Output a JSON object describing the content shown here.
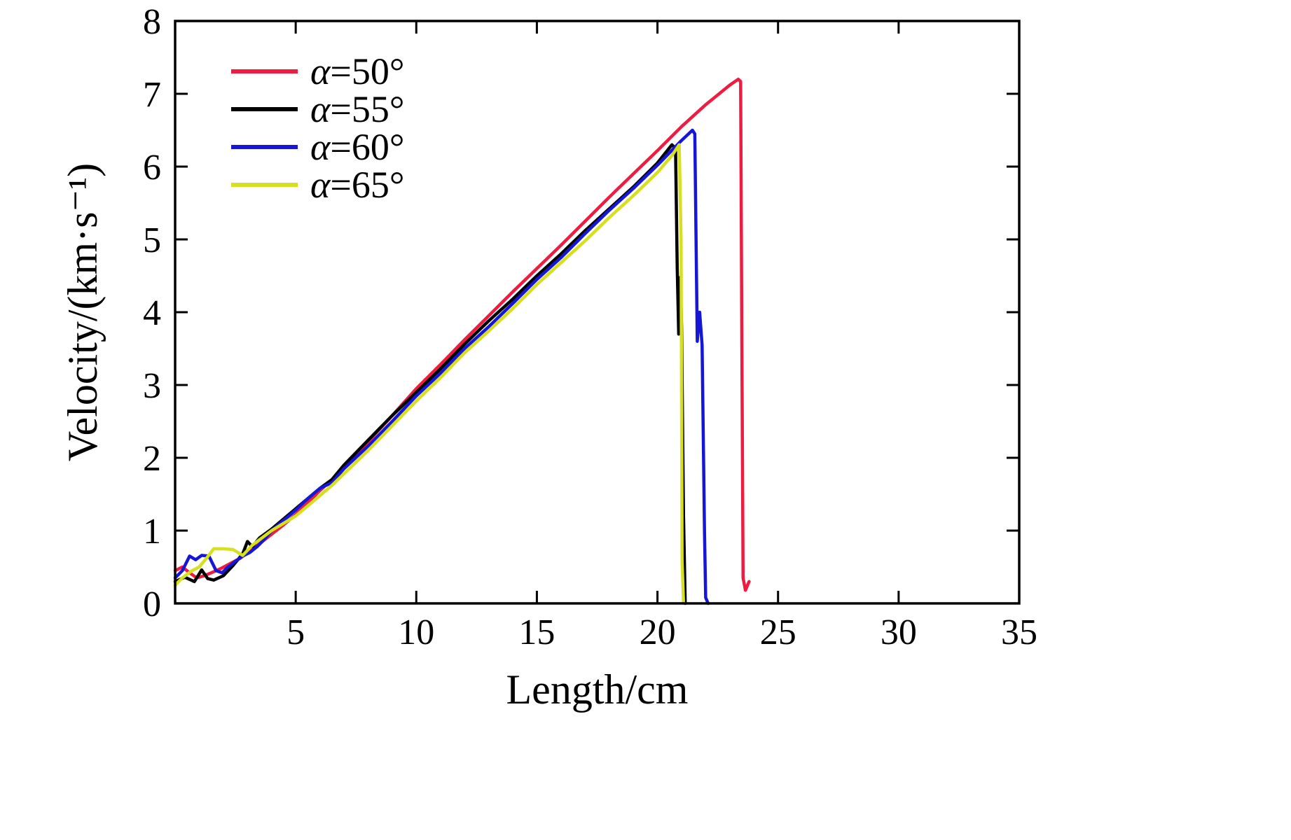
{
  "chart_data": {
    "type": "line",
    "title": "",
    "xlabel": "Length/cm",
    "ylabel": "Velocity/(km·s⁻¹)",
    "xlim": [
      0,
      35
    ],
    "ylim": [
      0,
      8
    ],
    "xticks": [
      5,
      10,
      15,
      20,
      25,
      30,
      35
    ],
    "yticks": [
      0,
      1,
      2,
      3,
      4,
      5,
      6,
      7,
      8
    ],
    "grid": false,
    "legend_position": "top-left",
    "frame_color": "#000000",
    "series": [
      {
        "name": "α=50°",
        "color": "#ed1c40",
        "x": [
          0,
          0.3,
          0.6,
          0.9,
          1.2,
          1.5,
          1.9,
          2.3,
          2.7,
          3.1,
          3.5,
          4,
          4.5,
          5,
          5.5,
          6,
          6.5,
          7,
          7.5,
          8,
          9,
          10,
          11,
          12,
          13,
          14,
          15,
          16,
          17,
          18,
          19,
          20,
          21,
          22,
          23,
          23.35,
          23.45,
          23.5,
          23.55,
          23.65,
          23.8
        ],
        "y": [
          0.45,
          0.5,
          0.42,
          0.35,
          0.38,
          0.42,
          0.48,
          0.55,
          0.62,
          0.72,
          0.82,
          0.95,
          1.08,
          1.22,
          1.38,
          1.55,
          1.7,
          1.88,
          2.05,
          2.22,
          2.58,
          2.95,
          3.28,
          3.62,
          3.95,
          4.28,
          4.6,
          4.92,
          5.25,
          5.58,
          5.9,
          6.22,
          6.55,
          6.85,
          7.12,
          7.2,
          7.17,
          3.5,
          0.35,
          0.18,
          0.3
        ]
      },
      {
        "name": "α=55°",
        "color": "#000000",
        "x": [
          0,
          0.4,
          0.8,
          1.1,
          1.35,
          1.6,
          2.0,
          2.4,
          2.8,
          3.0,
          3.2,
          3.5,
          4,
          4.5,
          5,
          5.5,
          6,
          6.5,
          7,
          8,
          9,
          10,
          11,
          12,
          13,
          14,
          15,
          16,
          17,
          18,
          19,
          20,
          20.6,
          20.75,
          20.82,
          20.88,
          20.95,
          21.0,
          21.08,
          21.15
        ],
        "y": [
          0.3,
          0.36,
          0.3,
          0.46,
          0.34,
          0.32,
          0.38,
          0.52,
          0.68,
          0.85,
          0.78,
          0.9,
          1.02,
          1.16,
          1.3,
          1.44,
          1.58,
          1.7,
          1.9,
          2.24,
          2.58,
          2.9,
          3.22,
          3.56,
          3.88,
          4.18,
          4.5,
          4.8,
          5.12,
          5.42,
          5.72,
          6.05,
          6.3,
          6.25,
          4.6,
          3.7,
          4.48,
          3.8,
          1.2,
          0
        ]
      },
      {
        "name": "α=60°",
        "color": "#1616d6",
        "x": [
          0,
          0.3,
          0.6,
          0.85,
          1.1,
          1.4,
          1.7,
          1.95,
          2.2,
          2.5,
          2.8,
          3.1,
          3.4,
          3.7,
          4,
          4.5,
          5,
          5.5,
          6,
          6.5,
          7,
          8,
          9,
          10,
          11,
          12,
          13,
          14,
          15,
          16,
          17,
          18,
          19,
          20,
          21,
          21.45,
          21.55,
          21.65,
          21.75,
          21.85,
          21.95,
          22.0,
          22.1
        ],
        "y": [
          0.35,
          0.45,
          0.65,
          0.6,
          0.66,
          0.65,
          0.45,
          0.42,
          0.5,
          0.58,
          0.65,
          0.7,
          0.78,
          0.88,
          1.0,
          1.14,
          1.28,
          1.44,
          1.58,
          1.66,
          1.85,
          2.16,
          2.5,
          2.85,
          3.16,
          3.5,
          3.8,
          4.12,
          4.45,
          4.75,
          5.08,
          5.4,
          5.7,
          6.02,
          6.36,
          6.5,
          6.45,
          3.6,
          4.0,
          3.55,
          1.0,
          0.08,
          0
        ]
      },
      {
        "name": "α=65°",
        "color": "#d6e021",
        "x": [
          0,
          0.3,
          0.7,
          1.0,
          1.3,
          1.6,
          2.0,
          2.4,
          2.8,
          3.2,
          3.6,
          4,
          4.5,
          5,
          5.5,
          6,
          6.5,
          7,
          8,
          9,
          10,
          11,
          12,
          13,
          14,
          15,
          16,
          17,
          18,
          19,
          20,
          20.6,
          20.9,
          20.98,
          21.02,
          21.08
        ],
        "y": [
          0.25,
          0.35,
          0.45,
          0.5,
          0.62,
          0.75,
          0.75,
          0.74,
          0.66,
          0.8,
          0.9,
          1.0,
          1.1,
          1.2,
          1.34,
          1.48,
          1.62,
          1.78,
          2.1,
          2.44,
          2.78,
          3.1,
          3.44,
          3.74,
          4.05,
          4.38,
          4.68,
          4.98,
          5.3,
          5.6,
          5.92,
          6.15,
          6.3,
          5.0,
          0.6,
          0
        ]
      }
    ]
  }
}
